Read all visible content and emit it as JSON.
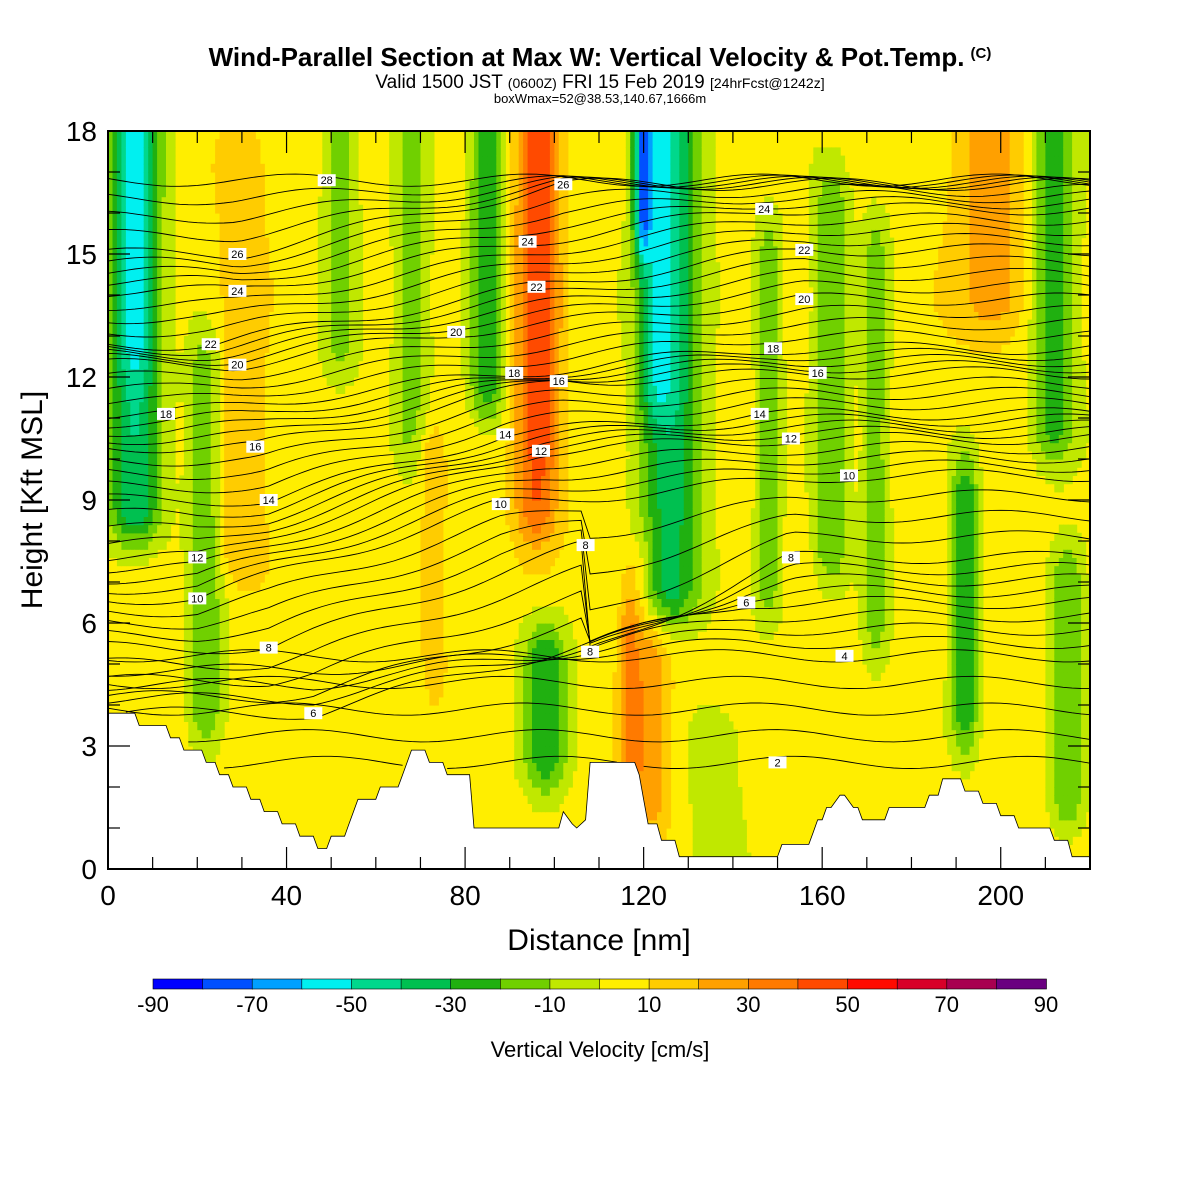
{
  "header": {
    "title": "Wind-Parallel Section at Max W: Vertical Velocity & Pot.Temp.",
    "copyright": "(C)",
    "valid_a": "Valid 1500 JST",
    "valid_zulu": "(0600Z)",
    "valid_b": "FRI 15 Feb 2019",
    "forecast": "[24hrFcst@1242z]",
    "box_wmax": "boxWmax=52@38.53,140.67,1666m"
  },
  "chart_data": {
    "type": "heatmap",
    "title": "Wind-Parallel Section at Max W: Vertical Velocity & Pot.Temp.",
    "xlabel": "Distance [nm]",
    "ylabel": "Height [Kft MSL]",
    "xlim": [
      0,
      220
    ],
    "ylim": [
      0,
      18
    ],
    "x_ticks": [
      "0",
      "40",
      "80",
      "120",
      "160",
      "200"
    ],
    "y_ticks": [
      "0",
      "3",
      "6",
      "9",
      "12",
      "15",
      "18"
    ],
    "colorbar": {
      "title": "Vertical Velocity [cm/s]",
      "tick_labels": [
        "-90",
        "-70",
        "-50",
        "-30",
        "-10",
        "10",
        "30",
        "50",
        "70",
        "90"
      ],
      "bounds": [
        -90,
        -80,
        -70,
        -60,
        -50,
        -40,
        -30,
        -20,
        -10,
        0,
        10,
        20,
        30,
        40,
        50,
        60,
        70,
        80,
        90
      ],
      "colors": [
        "#0000ff",
        "#0050ff",
        "#00a0ff",
        "#00f0f0",
        "#00d88c",
        "#00c050",
        "#20b010",
        "#70d000",
        "#c0e800",
        "#ffee00",
        "#ffcc00",
        "#ffa000",
        "#ff7a00",
        "#ff4a00",
        "#ff0a00",
        "#d80028",
        "#a80050",
        "#6a0080"
      ],
      "background_color": "#ffee00"
    },
    "terrain": {
      "x": [
        0,
        6,
        7,
        13,
        14,
        16,
        17,
        21,
        22,
        24,
        25,
        27,
        28,
        31,
        32,
        34,
        35,
        38,
        39,
        42,
        43,
        46,
        47,
        49,
        50,
        53,
        54,
        55,
        56,
        60,
        61,
        65,
        66,
        67,
        68,
        71,
        72,
        75,
        76,
        81,
        82,
        101,
        102,
        104,
        105,
        107,
        108,
        118,
        119,
        120,
        121,
        123,
        124,
        127,
        128,
        136,
        137,
        150,
        151,
        157,
        158,
        159,
        160,
        161,
        162,
        164,
        165,
        167,
        168,
        169,
        170,
        174,
        175,
        183,
        184,
        186,
        187,
        191,
        192,
        195,
        196,
        199,
        200,
        203,
        204,
        211,
        212,
        215,
        216,
        220
      ],
      "height_kft": [
        3.8,
        3.8,
        3.5,
        3.5,
        3.2,
        3.2,
        2.9,
        2.9,
        2.6,
        2.6,
        2.3,
        2.3,
        2.0,
        2.0,
        1.7,
        1.7,
        1.4,
        1.4,
        1.1,
        1.1,
        0.8,
        0.8,
        0.5,
        0.5,
        0.8,
        0.8,
        1.1,
        1.4,
        1.7,
        1.7,
        2.0,
        2.0,
        2.3,
        2.6,
        2.9,
        2.9,
        2.6,
        2.6,
        2.3,
        2.3,
        1.0,
        1.0,
        1.4,
        1.1,
        1.0,
        1.2,
        2.6,
        2.6,
        2.3,
        1.7,
        1.1,
        1.1,
        0.7,
        0.7,
        0.3,
        0.3,
        0.3,
        0.3,
        0.6,
        0.6,
        0.9,
        1.2,
        1.2,
        1.5,
        1.5,
        1.8,
        1.8,
        1.5,
        1.5,
        1.2,
        1.2,
        1.2,
        1.5,
        1.5,
        1.8,
        1.8,
        2.2,
        2.2,
        1.9,
        1.9,
        1.6,
        1.6,
        1.3,
        1.3,
        1.0,
        1.0,
        0.7,
        0.7,
        0.3,
        0.3
      ]
    },
    "vertical_velocity_features": [
      {
        "x": 6,
        "y_range": [
          9,
          18
        ],
        "w_cms": -40,
        "x_halfwidth": 6
      },
      {
        "x": 6,
        "y_range": [
          13,
          18
        ],
        "w_cms": -55,
        "x_halfwidth": 3
      },
      {
        "x": 22,
        "y_range": [
          4,
          12
        ],
        "w_cms": -20,
        "x_halfwidth": 4
      },
      {
        "x": 30,
        "y_range": [
          8,
          17
        ],
        "w_cms": 20,
        "x_halfwidth": 5
      },
      {
        "x": 52,
        "y_range": [
          13,
          18
        ],
        "w_cms": -15,
        "x_halfwidth": 4
      },
      {
        "x": 68,
        "y_range": [
          11,
          18
        ],
        "w_cms": -15,
        "x_halfwidth": 4
      },
      {
        "x": 73,
        "y_range": [
          5,
          10
        ],
        "w_cms": 15,
        "x_halfwidth": 3
      },
      {
        "x": 85,
        "y_range": [
          12,
          18
        ],
        "w_cms": -30,
        "x_halfwidth": 4
      },
      {
        "x": 96,
        "y_range": [
          9,
          18
        ],
        "w_cms": 40,
        "x_halfwidth": 5
      },
      {
        "x": 97,
        "y_range": [
          11,
          18
        ],
        "w_cms": 50,
        "x_halfwidth": 3
      },
      {
        "x": 98,
        "y_range": [
          3,
          5
        ],
        "w_cms": -30,
        "x_halfwidth": 5
      },
      {
        "x": 118,
        "y_range": [
          3,
          6
        ],
        "w_cms": 52,
        "x_halfwidth": 2.5
      },
      {
        "x": 121,
        "y_range": [
          2,
          7
        ],
        "w_cms": 30,
        "x_halfwidth": 5
      },
      {
        "x": 126,
        "y_range": [
          7,
          18
        ],
        "w_cms": -35,
        "x_halfwidth": 7
      },
      {
        "x": 124,
        "y_range": [
          12,
          18
        ],
        "w_cms": -55,
        "x_halfwidth": 4
      },
      {
        "x": 120,
        "y_range": [
          16,
          18
        ],
        "w_cms": -75,
        "x_halfwidth": 2
      },
      {
        "x": 136,
        "y_range": [
          0,
          3
        ],
        "w_cms": -5,
        "x_halfwidth": 7
      },
      {
        "x": 148,
        "y_range": [
          7,
          15
        ],
        "w_cms": -15,
        "x_halfwidth": 3
      },
      {
        "x": 162,
        "y_range": [
          8,
          16
        ],
        "w_cms": -20,
        "x_halfwidth": 4
      },
      {
        "x": 172,
        "y_range": [
          6,
          15
        ],
        "w_cms": -15,
        "x_halfwidth": 3
      },
      {
        "x": 192,
        "y_range": [
          4,
          9
        ],
        "w_cms": -30,
        "x_halfwidth": 3
      },
      {
        "x": 198,
        "y_range": [
          14,
          18
        ],
        "w_cms": 25,
        "x_halfwidth": 9
      },
      {
        "x": 212,
        "y_range": [
          11,
          18
        ],
        "w_cms": -25,
        "x_halfwidth": 5
      },
      {
        "x": 215,
        "y_range": [
          2,
          7
        ],
        "w_cms": -20,
        "x_halfwidth": 4
      }
    ],
    "pot_temp_contours_celsius": {
      "levels": [
        2,
        4,
        6,
        8,
        10,
        12,
        14,
        16,
        18,
        20,
        22,
        24,
        26,
        28
      ],
      "contour_interval": 0.5,
      "labels": [
        {
          "text": "28",
          "x": 49,
          "y": 16.8
        },
        {
          "text": "26",
          "x": 29,
          "y": 15.0
        },
        {
          "text": "24",
          "x": 29,
          "y": 14.1
        },
        {
          "text": "22",
          "x": 23,
          "y": 12.8
        },
        {
          "text": "20",
          "x": 29,
          "y": 12.3
        },
        {
          "text": "18",
          "x": 13,
          "y": 11.1
        },
        {
          "text": "16",
          "x": 33,
          "y": 10.3
        },
        {
          "text": "14",
          "x": 36,
          "y": 9.0
        },
        {
          "text": "12",
          "x": 20,
          "y": 7.6
        },
        {
          "text": "10",
          "x": 20,
          "y": 6.6
        },
        {
          "text": "8",
          "x": 36,
          "y": 5.4
        },
        {
          "text": "6",
          "x": 46,
          "y": 3.8
        },
        {
          "text": "26",
          "x": 102,
          "y": 16.7
        },
        {
          "text": "24",
          "x": 94,
          "y": 15.3
        },
        {
          "text": "22",
          "x": 96,
          "y": 14.2
        },
        {
          "text": "20",
          "x": 78,
          "y": 13.1
        },
        {
          "text": "18",
          "x": 91,
          "y": 12.1
        },
        {
          "text": "16",
          "x": 101,
          "y": 11.9
        },
        {
          "text": "14",
          "x": 89,
          "y": 10.6
        },
        {
          "text": "12",
          "x": 97,
          "y": 10.2
        },
        {
          "text": "10",
          "x": 88,
          "y": 8.9
        },
        {
          "text": "8",
          "x": 107,
          "y": 7.9
        },
        {
          "text": "8",
          "x": 108,
          "y": 5.3
        },
        {
          "text": "24",
          "x": 147,
          "y": 16.1
        },
        {
          "text": "22",
          "x": 156,
          "y": 15.1
        },
        {
          "text": "20",
          "x": 156,
          "y": 13.9
        },
        {
          "text": "18",
          "x": 149,
          "y": 12.7
        },
        {
          "text": "16",
          "x": 159,
          "y": 12.1
        },
        {
          "text": "14",
          "x": 146,
          "y": 11.1
        },
        {
          "text": "12",
          "x": 153,
          "y": 10.5
        },
        {
          "text": "10",
          "x": 166,
          "y": 9.6
        },
        {
          "text": "8",
          "x": 153,
          "y": 7.6
        },
        {
          "text": "6",
          "x": 143,
          "y": 6.5
        },
        {
          "text": "4",
          "x": 165,
          "y": 5.2
        },
        {
          "text": "2",
          "x": 150,
          "y": 2.6
        }
      ]
    },
    "grid": false,
    "legend": "colorbar-bottom"
  }
}
